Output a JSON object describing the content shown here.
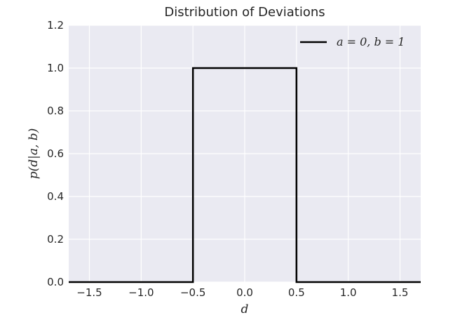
{
  "chart_data": {
    "type": "line",
    "title": "Distribution of Deviations",
    "xlabel": "d",
    "ylabel": "p(d|a, b)",
    "xlim": [
      -1.7,
      1.7
    ],
    "ylim": [
      0,
      1.2
    ],
    "xticks": [
      -1.5,
      -1.0,
      -0.5,
      0.0,
      0.5,
      1.0,
      1.5
    ],
    "xtick_labels": [
      "−1.5",
      "−1.0",
      "−0.5",
      "0.0",
      "0.5",
      "1.0",
      "1.5"
    ],
    "yticks": [
      0.0,
      0.2,
      0.4,
      0.6,
      0.8,
      1.0,
      1.2
    ],
    "ytick_labels": [
      "0.0",
      "0.2",
      "0.4",
      "0.6",
      "0.8",
      "1.0",
      "1.2"
    ],
    "grid": true,
    "legend_position": "top-right",
    "series": [
      {
        "name": "a = 0,  b = 1",
        "color": "#000000",
        "x": [
          -1.7,
          -0.5,
          -0.5,
          0.5,
          0.5,
          1.7
        ],
        "y": [
          0,
          0,
          1,
          1,
          0,
          0
        ]
      }
    ],
    "colors": {
      "background": "#eaeaf2",
      "grid": "#ffffff",
      "text": "#262626"
    }
  }
}
